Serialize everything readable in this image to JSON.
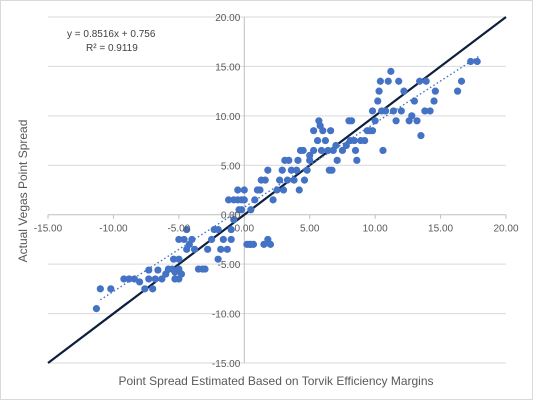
{
  "chart_data": {
    "type": "scatter",
    "title": "",
    "xlabel": "Point Spread Estimated Based on Torvik Efficiency Margins",
    "ylabel": "Actual Vegas Point Spread",
    "xlim": [
      -15,
      20
    ],
    "ylim": [
      -15,
      20
    ],
    "x_ticks": [
      "-15.00",
      "-10.00",
      "-5.00",
      "0.00",
      "5.00",
      "10.00",
      "15.00",
      "20.00"
    ],
    "y_ticks": [
      "-15.00",
      "-10.00",
      "-5.00",
      "0.00",
      "5.00",
      "10.00",
      "15.00",
      "20.00"
    ],
    "grid": "horizontal",
    "legend": "none",
    "colors": {
      "points": "#4472c4",
      "identity_line": "#0d1f3c",
      "trendline": "#4472c4",
      "gridline": "#d9d9d9",
      "axis": "#bfbfbf"
    },
    "annotations": {
      "equation": "y = 0.8516x + 0.756",
      "r_squared": "R² = 0.9119"
    },
    "trendline": {
      "slope": 0.8516,
      "intercept": 0.756,
      "style": "dotted",
      "x_range": [
        -11,
        18
      ]
    },
    "identity_line": {
      "slope": 1,
      "intercept": 0,
      "x_range": [
        -15,
        20
      ]
    },
    "points": [
      [
        -11.3,
        -9.5
      ],
      [
        -11.0,
        -7.5
      ],
      [
        -10.2,
        -7.5
      ],
      [
        -9.2,
        -6.5
      ],
      [
        -8.8,
        -6.5
      ],
      [
        -8.4,
        -6.5
      ],
      [
        -8.0,
        -6.8
      ],
      [
        -7.6,
        -7.5
      ],
      [
        -7.3,
        -6.5
      ],
      [
        -7.3,
        -5.6
      ],
      [
        -7.0,
        -7.5
      ],
      [
        -6.8,
        -6.5
      ],
      [
        -6.6,
        -5.6
      ],
      [
        -6.3,
        -6.5
      ],
      [
        -6.0,
        -6.0
      ],
      [
        -5.8,
        -5.5
      ],
      [
        -5.5,
        -5.5
      ],
      [
        -5.3,
        -5.8
      ],
      [
        -5.0,
        -5.5
      ],
      [
        -5.3,
        -6.5
      ],
      [
        -5.0,
        -6.5
      ],
      [
        -4.8,
        -6.0
      ],
      [
        -5.4,
        -4.5
      ],
      [
        -5.0,
        -4.5
      ],
      [
        -5.0,
        -2.5
      ],
      [
        -4.6,
        -2.5
      ],
      [
        -4.4,
        -3.5
      ],
      [
        -4.2,
        -3.0
      ],
      [
        -4.0,
        -2.5
      ],
      [
        -3.8,
        -3.5
      ],
      [
        -4.4,
        -1.5
      ],
      [
        -3.5,
        -5.5
      ],
      [
        -3.2,
        -5.5
      ],
      [
        -3.0,
        -5.5
      ],
      [
        -2.8,
        -3.5
      ],
      [
        -2.5,
        -2.5
      ],
      [
        -2.3,
        -1.5
      ],
      [
        -2.0,
        -1.5
      ],
      [
        -2.0,
        -4.5
      ],
      [
        -1.8,
        -3.5
      ],
      [
        -1.6,
        -2.5
      ],
      [
        -1.3,
        -3.5
      ],
      [
        -1.0,
        -2.5
      ],
      [
        -1.0,
        -1.5
      ],
      [
        -0.8,
        -0.5
      ],
      [
        -0.4,
        0.5
      ],
      [
        -0.2,
        0.5
      ],
      [
        -1.2,
        1.5
      ],
      [
        -0.8,
        1.5
      ],
      [
        -0.5,
        1.5
      ],
      [
        -0.2,
        1.5
      ],
      [
        -0.5,
        2.5
      ],
      [
        0.0,
        2.5
      ],
      [
        0.0,
        1.5
      ],
      [
        0.2,
        -3.0
      ],
      [
        0.4,
        -3.0
      ],
      [
        0.5,
        -3.0
      ],
      [
        0.7,
        -3.0
      ],
      [
        0.5,
        0.5
      ],
      [
        0.8,
        1.5
      ],
      [
        1.0,
        2.5
      ],
      [
        1.2,
        2.5
      ],
      [
        1.3,
        3.5
      ],
      [
        1.6,
        3.5
      ],
      [
        1.8,
        4.5
      ],
      [
        1.5,
        -3.0
      ],
      [
        1.8,
        -2.5
      ],
      [
        2.0,
        -3.0
      ],
      [
        2.2,
        1.5
      ],
      [
        2.5,
        2.5
      ],
      [
        2.7,
        3.5
      ],
      [
        2.9,
        4.5
      ],
      [
        3.1,
        5.5
      ],
      [
        3.4,
        5.5
      ],
      [
        3.3,
        3.5
      ],
      [
        3.0,
        2.5
      ],
      [
        3.6,
        4.5
      ],
      [
        3.8,
        3.5
      ],
      [
        4.0,
        4.5
      ],
      [
        4.1,
        5.5
      ],
      [
        4.3,
        6.5
      ],
      [
        4.5,
        6.5
      ],
      [
        4.2,
        2.5
      ],
      [
        4.6,
        3.5
      ],
      [
        4.8,
        4.5
      ],
      [
        5.0,
        5.5
      ],
      [
        5.0,
        6.0
      ],
      [
        5.3,
        6.5
      ],
      [
        5.3,
        8.5
      ],
      [
        5.6,
        7.5
      ],
      [
        5.7,
        9.5
      ],
      [
        5.8,
        9.0
      ],
      [
        5.9,
        6.5
      ],
      [
        6.0,
        8.5
      ],
      [
        6.2,
        7.5
      ],
      [
        6.4,
        6.5
      ],
      [
        6.6,
        8.5
      ],
      [
        6.8,
        6.5
      ],
      [
        7.0,
        7.0
      ],
      [
        7.1,
        5.5
      ],
      [
        6.7,
        4.5
      ],
      [
        6.5,
        4.5
      ],
      [
        7.5,
        6.5
      ],
      [
        7.8,
        7.0
      ],
      [
        8.0,
        9.5
      ],
      [
        8.2,
        9.5
      ],
      [
        8.1,
        7.5
      ],
      [
        8.4,
        7.5
      ],
      [
        8.6,
        5.5
      ],
      [
        8.5,
        6.5
      ],
      [
        8.9,
        7.5
      ],
      [
        9.2,
        7.5
      ],
      [
        9.4,
        8.5
      ],
      [
        9.6,
        8.5
      ],
      [
        9.8,
        8.5
      ],
      [
        9.8,
        10.5
      ],
      [
        10.0,
        9.5
      ],
      [
        10.2,
        11.5
      ],
      [
        10.3,
        12.5
      ],
      [
        10.4,
        13.5
      ],
      [
        10.5,
        10.5
      ],
      [
        10.6,
        6.5
      ],
      [
        10.8,
        10.5
      ],
      [
        11.0,
        13.5
      ],
      [
        11.2,
        14.5
      ],
      [
        11.4,
        10.5
      ],
      [
        11.6,
        9.5
      ],
      [
        11.8,
        13.5
      ],
      [
        12.0,
        10.5
      ],
      [
        12.2,
        12.5
      ],
      [
        12.6,
        9.5
      ],
      [
        12.8,
        10.0
      ],
      [
        13.0,
        11.5
      ],
      [
        13.2,
        9.5
      ],
      [
        13.4,
        13.5
      ],
      [
        13.5,
        8.0
      ],
      [
        13.8,
        10.5
      ],
      [
        13.9,
        13.5
      ],
      [
        14.2,
        10.5
      ],
      [
        14.5,
        11.5
      ],
      [
        14.6,
        12.5
      ],
      [
        16.3,
        12.5
      ],
      [
        16.6,
        13.5
      ],
      [
        17.3,
        15.5
      ],
      [
        17.8,
        15.5
      ]
    ]
  }
}
